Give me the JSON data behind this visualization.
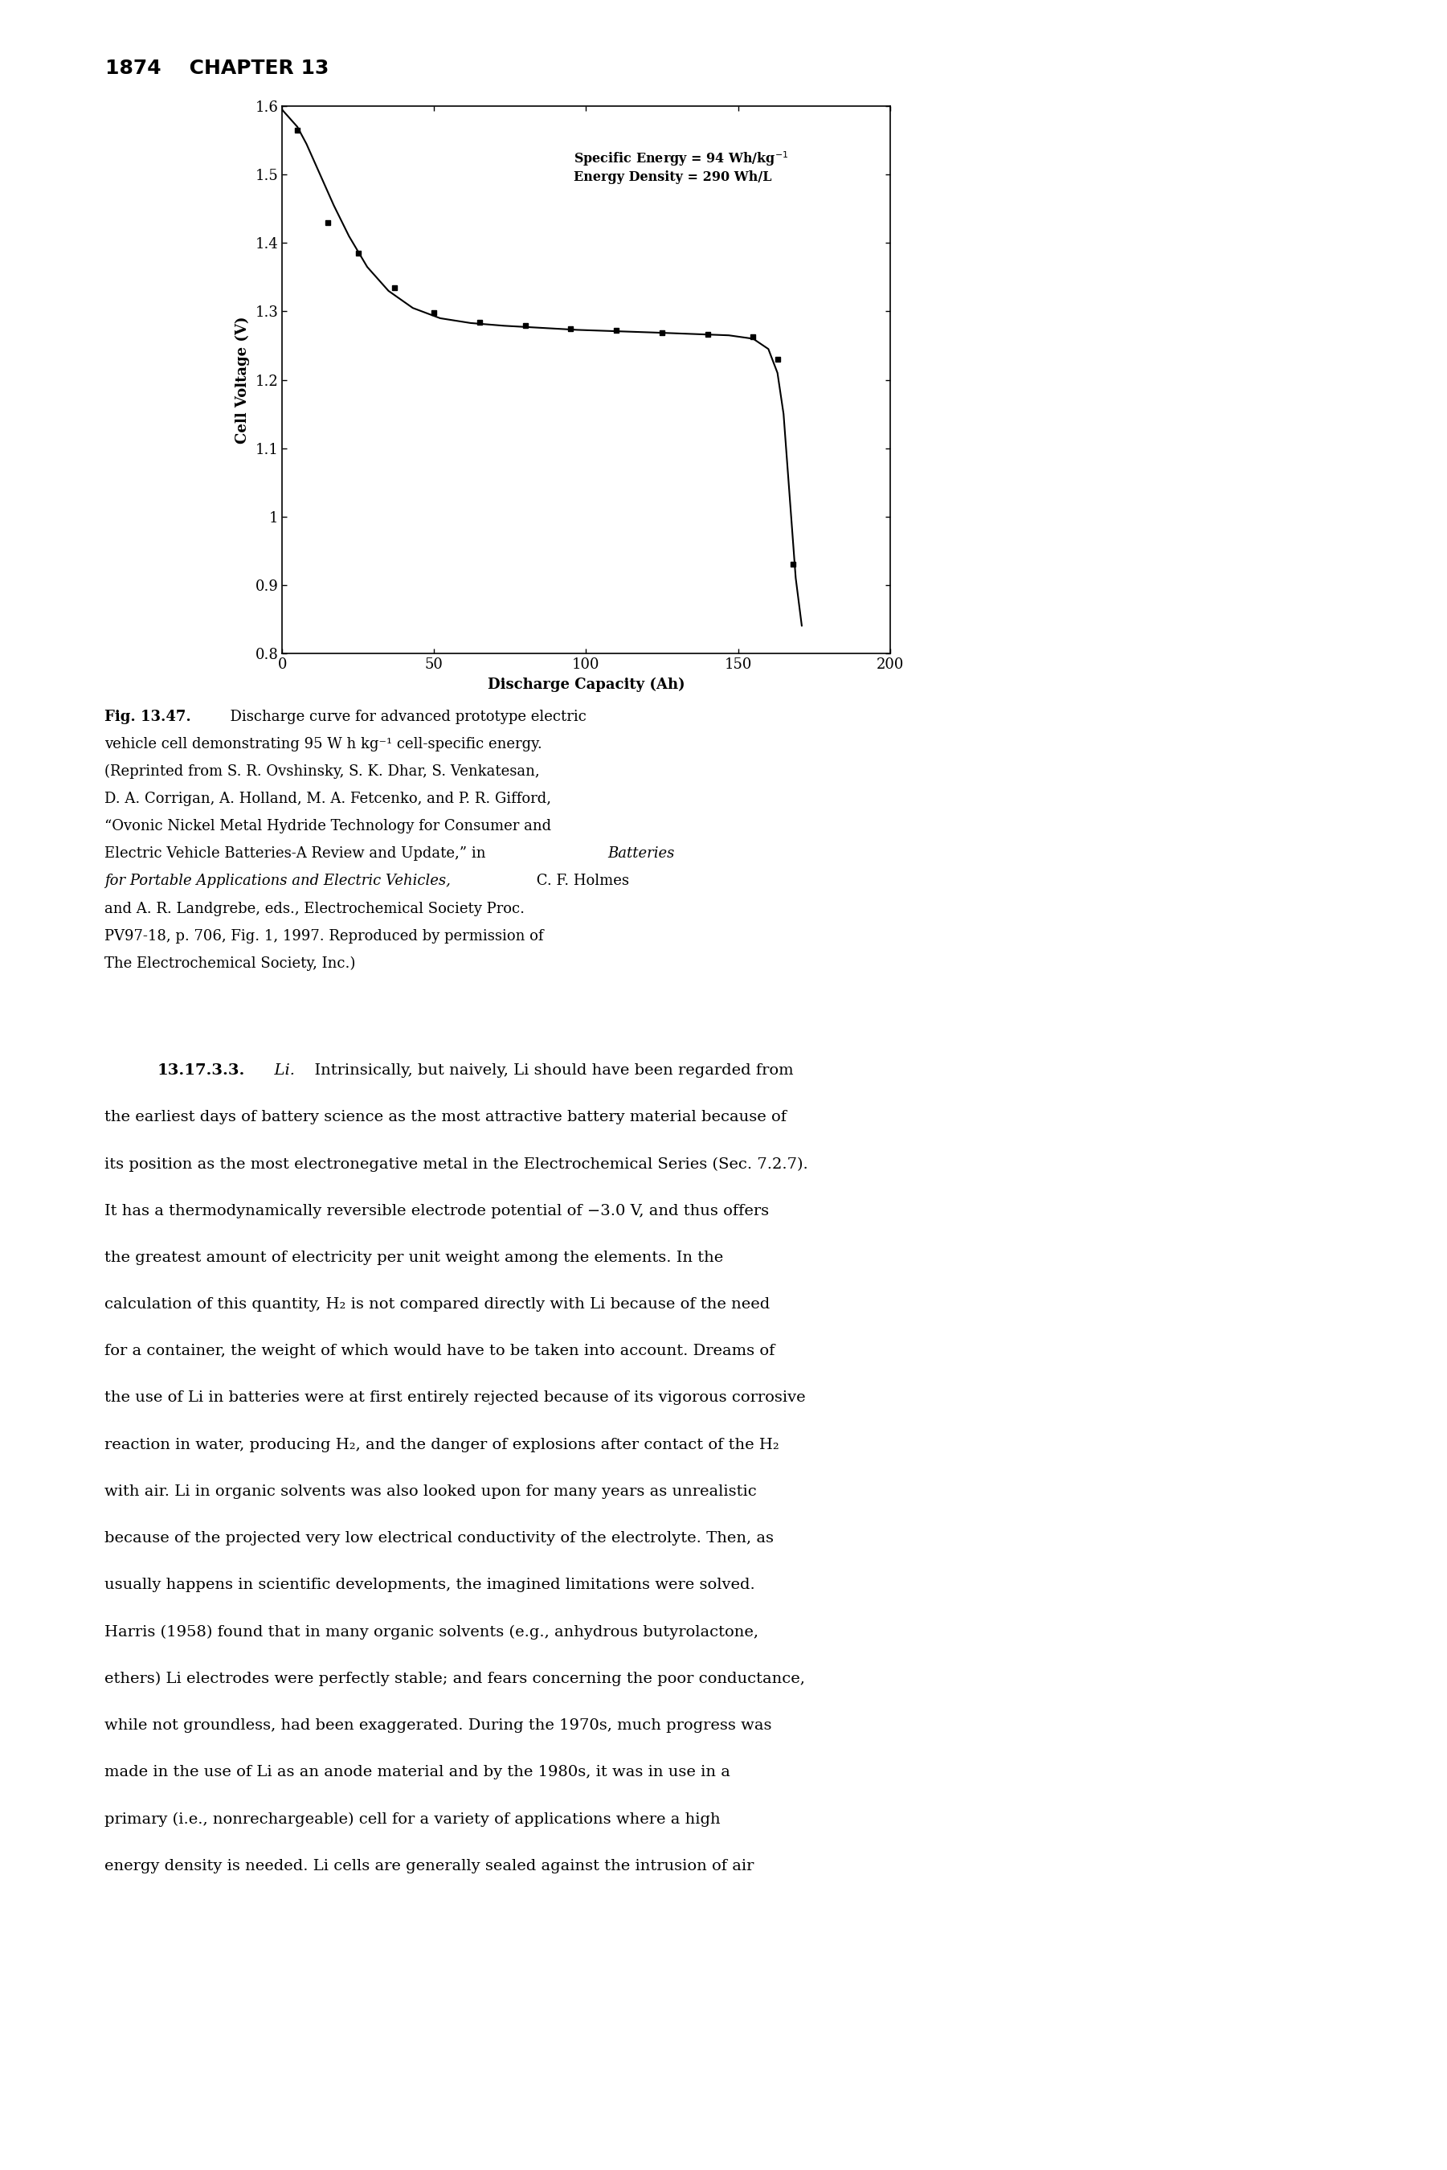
{
  "page_header": "1874    CHAPTER 13",
  "xlabel": "Discharge Capacity (Ah)",
  "ylabel": "Cell Voltage (V)",
  "xlim": [
    0,
    200
  ],
  "ylim": [
    0.8,
    1.6
  ],
  "xticks": [
    0,
    50,
    100,
    150,
    200
  ],
  "yticks": [
    0.8,
    0.9,
    1.0,
    1.1,
    1.2,
    1.3,
    1.4,
    1.5,
    1.6
  ],
  "curve_x": [
    0,
    1,
    3,
    5,
    8,
    12,
    17,
    22,
    28,
    35,
    43,
    52,
    62,
    73,
    85,
    97,
    110,
    123,
    135,
    147,
    155,
    160,
    163,
    165,
    167,
    169,
    171
  ],
  "curve_y": [
    1.595,
    1.59,
    1.58,
    1.57,
    1.545,
    1.505,
    1.455,
    1.41,
    1.365,
    1.33,
    1.305,
    1.29,
    1.283,
    1.279,
    1.276,
    1.273,
    1.271,
    1.269,
    1.267,
    1.265,
    1.26,
    1.245,
    1.21,
    1.15,
    1.03,
    0.91,
    0.84
  ],
  "marker_x": [
    5,
    15,
    25,
    37,
    50,
    65,
    80,
    95,
    110,
    125,
    140,
    155,
    163,
    168
  ],
  "marker_y": [
    1.565,
    1.43,
    1.385,
    1.335,
    1.298,
    1.284,
    1.279,
    1.275,
    1.272,
    1.269,
    1.266,
    1.263,
    1.23,
    0.93
  ],
  "annotation_line1": "Specific Energy = 94 Wh/kg",
  "annotation_line2": "Energy Density = 290 Wh/L",
  "background_color": "#ffffff",
  "line_color": "#000000"
}
